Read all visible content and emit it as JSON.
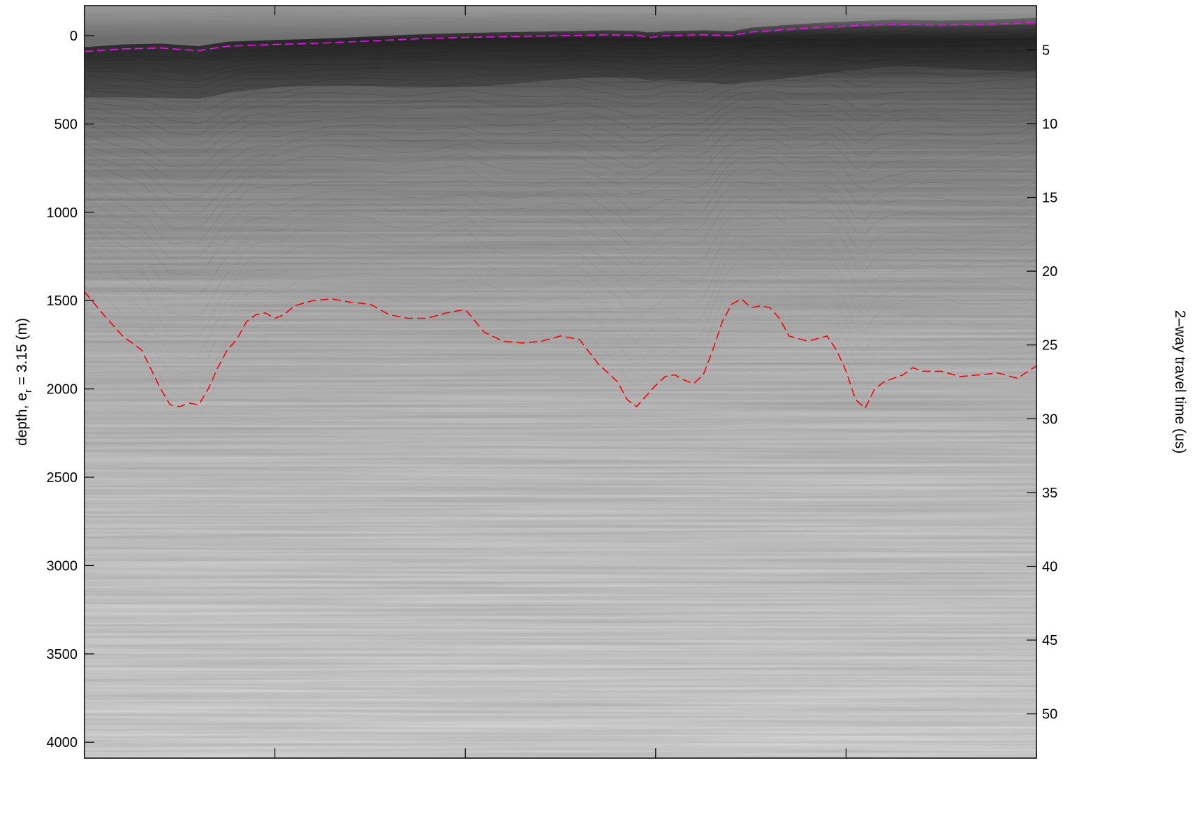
{
  "chart_data": {
    "type": "line",
    "title": "",
    "ylabel_left": {
      "prefix": "depth, e",
      "subscript": "r",
      "suffix": " = 3.15 (m)"
    },
    "ylabel_right": "2–way travel time (us)",
    "xlabel": "",
    "x_range": [
      0,
      100
    ],
    "x_ticks": [
      0,
      20,
      40,
      60,
      80,
      100
    ],
    "left_axis": {
      "range": [
        -170,
        4090
      ],
      "inverted": true,
      "ticks": [
        0,
        500,
        1000,
        1500,
        2000,
        2500,
        3000,
        3500,
        4000
      ],
      "tick_labels": [
        "0",
        "500",
        "1000",
        "1500",
        "2000",
        "2500",
        "3000",
        "3500",
        "4000"
      ]
    },
    "right_axis": {
      "range": [
        2.0,
        53.0
      ],
      "inverted": true,
      "ticks": [
        5,
        10,
        15,
        20,
        25,
        30,
        35,
        40,
        45,
        50
      ],
      "tick_labels": [
        "5",
        "10",
        "15",
        "20",
        "25",
        "30",
        "35",
        "40",
        "45",
        "50"
      ]
    },
    "colors": {
      "surface_pick": "#ff00ff",
      "bed_pick": "#ff0000",
      "image_top": "#3a3a3a",
      "image_bottom": "#dcdcdc"
    },
    "series": [
      {
        "key": "surface",
        "line_style": "dashed",
        "x": [
          0,
          4,
          8,
          12,
          15,
          20,
          25,
          30,
          35,
          40,
          45,
          50,
          55,
          58,
          59.5,
          61,
          65,
          68,
          70,
          75,
          80,
          85,
          90,
          95,
          100
        ],
        "y": [
          90,
          75,
          70,
          85,
          60,
          50,
          42,
          30,
          18,
          10,
          5,
          0,
          -5,
          -2,
          10,
          0,
          -5,
          0,
          -20,
          -40,
          -55,
          -65,
          -60,
          -65,
          -75
        ]
      },
      {
        "key": "bed",
        "line_style": "dashed",
        "x": [
          0,
          2,
          4,
          6,
          8,
          9,
          10,
          11,
          12,
          13,
          14,
          15,
          16,
          17,
          18,
          19,
          20,
          21,
          22,
          24,
          26,
          28,
          30,
          32,
          34,
          36,
          38,
          40,
          42,
          44,
          46,
          48,
          50,
          52,
          54,
          56,
          57,
          58,
          59,
          60,
          61,
          62,
          63,
          64,
          65,
          66,
          67,
          68,
          69,
          70,
          71,
          72,
          73,
          74,
          76,
          78,
          79,
          80,
          81,
          82,
          83,
          84,
          85,
          86,
          87,
          88,
          90,
          92,
          94,
          96,
          98,
          100
        ],
        "y": [
          1450,
          1580,
          1700,
          1780,
          2000,
          2090,
          2100,
          2080,
          2090,
          2000,
          1880,
          1780,
          1720,
          1620,
          1580,
          1570,
          1600,
          1580,
          1530,
          1500,
          1490,
          1510,
          1520,
          1580,
          1600,
          1600,
          1570,
          1550,
          1680,
          1730,
          1740,
          1730,
          1700,
          1720,
          1860,
          1960,
          2060,
          2100,
          2040,
          1980,
          1930,
          1920,
          1950,
          1970,
          1920,
          1780,
          1620,
          1520,
          1490,
          1540,
          1530,
          1540,
          1600,
          1700,
          1730,
          1700,
          1780,
          1900,
          2060,
          2110,
          2000,
          1960,
          1940,
          1920,
          1880,
          1900,
          1900,
          1930,
          1920,
          1910,
          1940,
          1870
        ]
      }
    ]
  }
}
